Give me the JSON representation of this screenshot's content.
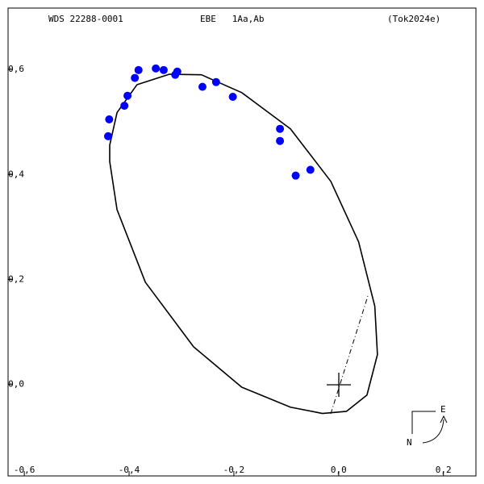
{
  "chart_data": {
    "type": "scatter",
    "title": "WDS 22288-0001",
    "subtitle": "EBE   1Aa,Ab",
    "reference": "(Tok2024e)",
    "compass": {
      "east": "E",
      "north": "N"
    },
    "xlim": [
      -0.631,
      0.262
    ],
    "ylim": [
      -0.174,
      0.717
    ],
    "xticks": [
      {
        "value": -0.6,
        "label": "-0,6"
      },
      {
        "value": -0.4,
        "label": "-0,4"
      },
      {
        "value": -0.2,
        "label": "-0,2"
      },
      {
        "value": 0,
        "label": "0,0"
      },
      {
        "value": 0.2,
        "label": "0,2"
      }
    ],
    "yticks": [
      {
        "value": 0,
        "label": "0,0"
      },
      {
        "value": 0.2,
        "label": "0,2"
      },
      {
        "value": 0.4,
        "label": "0,4"
      },
      {
        "value": 0.6,
        "label": "0,6"
      }
    ],
    "points": {
      "color": "#0000ff",
      "x": [
        -0.44,
        -0.438,
        -0.409,
        -0.403,
        -0.389,
        -0.382,
        -0.349,
        -0.334,
        -0.312,
        -0.308,
        -0.26,
        -0.234,
        -0.202,
        -0.112,
        -0.112,
        -0.054,
        -0.082
      ],
      "y": [
        0.473,
        0.505,
        0.531,
        0.55,
        0.584,
        0.599,
        0.602,
        0.599,
        0.59,
        0.596,
        0.567,
        0.576,
        0.548,
        0.487,
        0.464,
        0.409,
        0.398
      ]
    },
    "orbit": {
      "color": "#000000",
      "x": [
        -0.437,
        -0.423,
        -0.385,
        -0.323,
        -0.262,
        -0.185,
        -0.092,
        -0.015,
        0.038,
        0.069,
        0.074,
        0.054,
        0.015,
        -0.031,
        -0.092,
        -0.185,
        -0.277,
        -0.369,
        -0.423,
        -0.437,
        -0.437
      ],
      "y": [
        0.456,
        0.518,
        0.571,
        0.591,
        0.59,
        0.556,
        0.487,
        0.387,
        0.272,
        0.149,
        0.057,
        -0.02,
        -0.051,
        -0.055,
        -0.043,
        -0.005,
        0.072,
        0.195,
        0.333,
        0.425,
        0.456
      ]
    }
  }
}
